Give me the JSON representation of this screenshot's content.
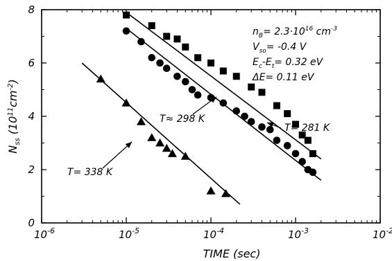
{
  "chart_data": {
    "type": "scatter",
    "xlabel": "TIME (sec)",
    "ylabel": "N_ss (10^11 cm^-2)",
    "x_scale": "log",
    "xlim": [
      1e-06,
      0.01
    ],
    "ylim": [
      0,
      8
    ],
    "x_ticks": [
      {
        "value": 1e-06,
        "label": "10",
        "exp": "-6"
      },
      {
        "value": 1e-05,
        "label": "10",
        "exp": "-5"
      },
      {
        "value": 0.0001,
        "label": "10",
        "exp": "-4"
      },
      {
        "value": 0.001,
        "label": "10",
        "exp": "-3"
      },
      {
        "value": 0.01,
        "label": "10",
        "exp": "-2"
      }
    ],
    "y_ticks": [
      0,
      2,
      4,
      6,
      8
    ],
    "grid": false,
    "series": [
      {
        "name": "T= 281 K",
        "marker": "square",
        "points": [
          [
            1e-05,
            7.8
          ],
          [
            2e-05,
            7.4
          ],
          [
            3e-05,
            7.0
          ],
          [
            4e-05,
            6.9
          ],
          [
            5e-05,
            6.6
          ],
          [
            7e-05,
            6.2
          ],
          [
            0.0001,
            6.0
          ],
          [
            0.00014,
            5.7
          ],
          [
            0.0002,
            5.5
          ],
          [
            0.0003,
            5.1
          ],
          [
            0.0004,
            4.9
          ],
          [
            0.0006,
            4.4
          ],
          [
            0.0008,
            4.1
          ],
          [
            0.001,
            3.7
          ],
          [
            0.0012,
            3.3
          ],
          [
            0.0014,
            3.1
          ],
          [
            0.0016,
            2.6
          ]
        ],
        "fit": [
          [
            1e-05,
            7.9
          ],
          [
            0.002,
            2.4
          ]
        ]
      },
      {
        "name": "T= 298 K",
        "marker": "circle",
        "points": [
          [
            1e-05,
            7.2
          ],
          [
            1.5e-05,
            6.8
          ],
          [
            2e-05,
            6.2
          ],
          [
            2.5e-05,
            6.0
          ],
          [
            3e-05,
            5.8
          ],
          [
            4e-05,
            5.5
          ],
          [
            5e-05,
            5.3
          ],
          [
            6e-05,
            5.0
          ],
          [
            7e-05,
            4.8
          ],
          [
            0.0001,
            4.7
          ],
          [
            0.00014,
            4.5
          ],
          [
            0.0002,
            4.2
          ],
          [
            0.00025,
            4.0
          ],
          [
            0.0003,
            3.8
          ],
          [
            0.0004,
            3.6
          ],
          [
            0.0005,
            3.5
          ],
          [
            0.0006,
            3.1
          ],
          [
            0.0008,
            2.9
          ],
          [
            0.001,
            2.6
          ],
          [
            0.0012,
            2.3
          ],
          [
            0.0014,
            2.0
          ],
          [
            0.0016,
            1.9
          ]
        ],
        "fit": [
          [
            1e-05,
            7.3
          ],
          [
            0.002,
            1.6
          ]
        ]
      },
      {
        "name": "T= 338 K",
        "marker": "triangle",
        "points": [
          [
            5e-06,
            5.4
          ],
          [
            1e-05,
            4.5
          ],
          [
            1.5e-05,
            3.8
          ],
          [
            2e-05,
            3.2
          ],
          [
            2.5e-05,
            3.0
          ],
          [
            3e-05,
            2.8
          ],
          [
            3.5e-05,
            2.6
          ],
          [
            5e-05,
            2.5
          ],
          [
            0.0001,
            1.2
          ],
          [
            0.00015,
            1.1
          ]
        ],
        "fit": [
          [
            3e-06,
            6.0
          ],
          [
            0.00022,
            0.7
          ]
        ]
      }
    ],
    "annotations": [
      {
        "id": "nb",
        "pre": "n",
        "sub": "B",
        "post": "= 2.3·10",
        "sup": "16",
        "tail": " cm",
        "sup2": "-3"
      },
      {
        "id": "vso",
        "pre": "V",
        "sub": "so",
        "post": "= -0.4 V"
      },
      {
        "id": "ecet",
        "pre": "E",
        "sub": "c",
        "mid": "-E",
        "sub2": "t",
        "post": "= 0.32 eV"
      },
      {
        "id": "de",
        "pre": "ΔE= 0.11 eV"
      }
    ],
    "curve_labels": [
      {
        "text": "T= 281 K",
        "series": 0
      },
      {
        "text": "T≈ 298 K",
        "series": 1
      },
      {
        "text": "T= 338 K",
        "series": 2
      }
    ]
  }
}
